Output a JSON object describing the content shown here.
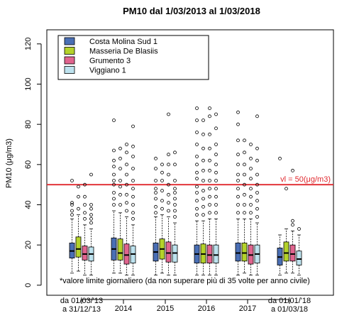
{
  "chart_data": {
    "type": "box",
    "title": "PM10 dal 1/03/2013 al 1/03/2018",
    "ylabel": "PM10 (μg/m3)",
    "xlabel": "",
    "ylim": [
      -5,
      127
    ],
    "yticks": [
      0,
      20,
      40,
      60,
      80,
      100,
      120
    ],
    "categories": [
      "da 01/03/'13|a 31/12/'13",
      "2014",
      "2015",
      "2016",
      "2017",
      "da 01/01/'18|a 01/03/18"
    ],
    "series": [
      {
        "name": "Costa Molina Sud 1",
        "color": "#4a6fb5",
        "boxes": [
          {
            "min": 6,
            "q1": 13.5,
            "median": 17,
            "q3": 21,
            "max": 33,
            "outliers": [
              35,
              37,
              40,
              41,
              52
            ]
          },
          {
            "min": 6,
            "q1": 12.5,
            "median": 18,
            "q3": 23.5,
            "max": 37,
            "outliers": [
              40,
              43,
              46,
              50,
              52,
              55,
              59,
              62,
              67,
              82
            ]
          },
          {
            "min": 5,
            "q1": 12,
            "median": 16.5,
            "q3": 21,
            "max": 34,
            "outliers": [
              36,
              39,
              43,
              46,
              48,
              52,
              58,
              63
            ]
          },
          {
            "min": 5,
            "q1": 11,
            "median": 15.5,
            "q3": 20,
            "max": 32,
            "outliers": [
              35,
              38,
              42,
              46,
              49,
              53,
              56,
              60,
              64,
              70,
              76,
              82,
              88
            ]
          },
          {
            "min": 5,
            "q1": 12,
            "median": 16,
            "q3": 21,
            "max": 33,
            "outliers": [
              36,
              40,
              44,
              48,
              52,
              55,
              60,
              65,
              72,
              80,
              86
            ]
          },
          {
            "min": 5,
            "q1": 10,
            "median": 14,
            "q3": 18.5,
            "max": 25,
            "outliers": [
              63
            ]
          }
        ]
      },
      {
        "name": "Masseria De Blasiis",
        "color": "#b4d22a",
        "boxes": [
          {
            "min": 7,
            "q1": 14,
            "median": 18,
            "q3": 24,
            "max": 35,
            "outliers": [
              38,
              44,
              49
            ]
          },
          {
            "min": 6,
            "q1": 12.5,
            "median": 16,
            "q3": 23,
            "max": 36,
            "outliers": [
              40,
              45,
              49,
              52,
              58,
              63,
              68
            ]
          },
          {
            "min": 6,
            "q1": 13,
            "median": 18,
            "q3": 23,
            "max": 35,
            "outliers": [
              38,
              42,
              47,
              52,
              56,
              60
            ]
          },
          {
            "min": 5,
            "q1": 11,
            "median": 15.5,
            "q3": 20.5,
            "max": 32,
            "outliers": [
              35,
              39,
              43,
              47,
              52,
              57,
              62,
              68,
              75,
              82
            ]
          },
          {
            "min": 6,
            "q1": 12,
            "median": 16,
            "q3": 21,
            "max": 33,
            "outliers": [
              36,
              40,
              45,
              50,
              55,
              60,
              66,
              72
            ]
          },
          {
            "min": 6,
            "q1": 12,
            "median": 16,
            "q3": 21.5,
            "max": 28,
            "outliers": [
              48
            ]
          }
        ]
      },
      {
        "name": "Grumento 3",
        "color": "#e0648e",
        "boxes": [
          {
            "min": 5,
            "q1": 12.5,
            "median": 15.5,
            "q3": 19.5,
            "max": 30,
            "outliers": [
              33,
              36,
              40,
              44,
              50
            ]
          },
          {
            "min": 5,
            "q1": 10.5,
            "median": 15,
            "q3": 20.5,
            "max": 34,
            "outliers": [
              37,
              41,
              45,
              50,
              55,
              60,
              66,
              70
            ]
          },
          {
            "min": 5,
            "q1": 11.5,
            "median": 16,
            "q3": 21.5,
            "max": 34,
            "outliers": [
              37,
              41,
              45,
              50,
              55,
              60,
              65,
              85
            ]
          },
          {
            "min": 5,
            "q1": 11,
            "median": 15,
            "q3": 20,
            "max": 33,
            "outliers": [
              36,
              40,
              44,
              48,
              52,
              57,
              62,
              68,
              75,
              84,
              88
            ]
          },
          {
            "min": 5,
            "q1": 10.5,
            "median": 15,
            "q3": 20,
            "max": 33,
            "outliers": [
              36,
              40,
              44,
              48,
              53,
              58,
              63,
              70
            ]
          },
          {
            "min": 6,
            "q1": 12,
            "median": 15.5,
            "q3": 20,
            "max": 27,
            "outliers": [
              30,
              32,
              57
            ]
          }
        ]
      },
      {
        "name": "Viggiano 1",
        "color": "#bde2ee",
        "boxes": [
          {
            "min": 5,
            "q1": 12,
            "median": 15.5,
            "q3": 19,
            "max": 28,
            "outliers": [
              31,
              33,
              35,
              38,
              40,
              55
            ]
          },
          {
            "min": 5,
            "q1": 11,
            "median": 15.5,
            "q3": 19.5,
            "max": 30,
            "outliers": [
              33,
              36,
              40,
              44,
              48,
              52,
              58,
              64,
              69,
              79
            ]
          },
          {
            "min": 5,
            "q1": 11.5,
            "median": 16,
            "q3": 20,
            "max": 31,
            "outliers": [
              34,
              37,
              40,
              43,
              46,
              48,
              52,
              60,
              66
            ]
          },
          {
            "min": 5,
            "q1": 11,
            "median": 15,
            "q3": 20,
            "max": 33,
            "outliers": [
              36,
              40,
              44,
              48,
              52,
              56,
              60,
              65,
              70,
              78,
              85
            ]
          },
          {
            "min": 5,
            "q1": 11,
            "median": 15.5,
            "q3": 20,
            "max": 31,
            "outliers": [
              34,
              38,
              42,
              46,
              50,
              55,
              62,
              68,
              84
            ]
          },
          {
            "min": 5,
            "q1": 10,
            "median": 13,
            "q3": 17,
            "max": 25,
            "outliers": [
              28
            ]
          }
        ]
      }
    ],
    "reference_line": {
      "value": 50,
      "label": "vl = 50(μg/m3)",
      "color": "#e0282e"
    },
    "annotation": "*valore limite giornaliero (da non superare più di 35 volte per anno civile)",
    "legend_position": "top-left",
    "grid": false
  }
}
